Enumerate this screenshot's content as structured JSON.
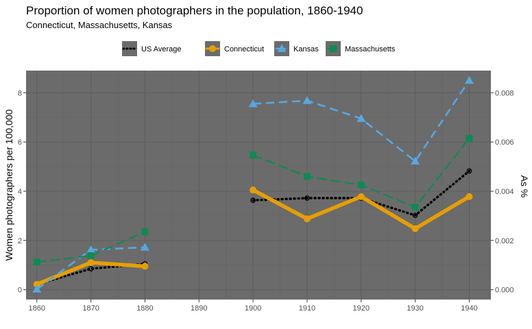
{
  "chart_data": {
    "type": "line",
    "title": "Proportion of women photographers in the population, 1860-1940",
    "subtitle": "Connecticut, Massachusetts, Kansas",
    "ylabel": "Women photographers per 100,000",
    "ylabel_right": "As %",
    "xlabel": "",
    "x_ticks": [
      1860,
      1870,
      1880,
      1890,
      1900,
      1910,
      1920,
      1930,
      1940
    ],
    "y_ticks": [
      0,
      2,
      4,
      6,
      8
    ],
    "y_right_ticks": [
      "0.000",
      "0.002",
      "0.004",
      "0.006",
      "0.008"
    ],
    "xlim": [
      1858,
      1944
    ],
    "ylim": [
      -0.4,
      8.9
    ],
    "grid": true,
    "legend_position": "top",
    "panel_color": "#6b6b6b",
    "series": [
      {
        "name": "US Average",
        "color": "#000000",
        "line": "dotted",
        "marker": "circle-open",
        "segments": [
          {
            "x": [
              1860,
              1870,
              1880
            ],
            "y": [
              0.22,
              0.85,
              1.05
            ]
          },
          {
            "x": [
              1900,
              1910,
              1920,
              1930,
              1940
            ],
            "y": [
              3.63,
              3.72,
              3.72,
              3.02,
              4.82
            ]
          }
        ]
      },
      {
        "name": "Connecticut",
        "color": "#e69f00",
        "line": "solid",
        "marker": "circle",
        "segments": [
          {
            "x": [
              1860,
              1870,
              1880
            ],
            "y": [
              0.22,
              1.1,
              0.95
            ]
          },
          {
            "x": [
              1900,
              1910,
              1920,
              1930,
              1940
            ],
            "y": [
              4.05,
              2.88,
              3.78,
              2.48,
              3.78
            ]
          }
        ]
      },
      {
        "name": "Kansas",
        "color": "#56a8e0",
        "line": "dashed",
        "marker": "triangle",
        "segments": [
          {
            "x": [
              1860,
              1870,
              1880
            ],
            "y": [
              0.02,
              1.62,
              1.72
            ]
          },
          {
            "x": [
              1900,
              1910,
              1920,
              1930,
              1940
            ],
            "y": [
              7.55,
              7.68,
              6.95,
              5.22,
              8.5
            ]
          }
        ]
      },
      {
        "name": "Massachusetts",
        "color": "#0e8a57",
        "line": "longdash",
        "marker": "square",
        "segments": [
          {
            "x": [
              1860,
              1870,
              1880
            ],
            "y": [
              1.12,
              1.38,
              2.35
            ]
          },
          {
            "x": [
              1900,
              1910,
              1920,
              1930,
              1940
            ],
            "y": [
              5.47,
              4.6,
              4.25,
              3.35,
              6.15
            ]
          }
        ]
      }
    ]
  }
}
